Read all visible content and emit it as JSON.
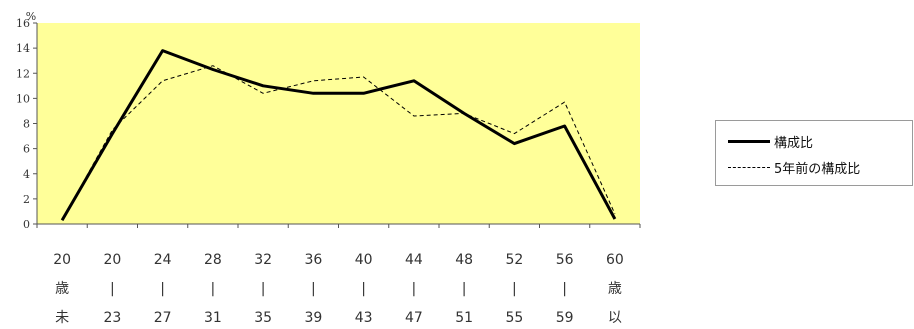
{
  "chart_data": {
    "type": "line",
    "y_unit": "%",
    "ylim": [
      0,
      16
    ],
    "yticks": [
      0,
      2,
      4,
      6,
      8,
      10,
      12,
      14,
      16
    ],
    "categories": [
      [
        "20",
        "歳",
        "未"
      ],
      [
        "20",
        "|",
        "23"
      ],
      [
        "24",
        "|",
        "27"
      ],
      [
        "28",
        "|",
        "31"
      ],
      [
        "32",
        "|",
        "35"
      ],
      [
        "36",
        "|",
        "39"
      ],
      [
        "40",
        "|",
        "43"
      ],
      [
        "44",
        "|",
        "47"
      ],
      [
        "48",
        "|",
        "51"
      ],
      [
        "52",
        "|",
        "55"
      ],
      [
        "56",
        "|",
        "59"
      ],
      [
        "60",
        "歳",
        "以"
      ]
    ],
    "series": [
      {
        "name": "構成比",
        "style": "solid",
        "color": "#000000",
        "values": [
          0.3,
          7.2,
          13.8,
          12.3,
          11.0,
          10.4,
          10.4,
          11.4,
          8.8,
          6.4,
          7.8,
          0.4
        ]
      },
      {
        "name": "5年前の構成比",
        "style": "dashed",
        "color": "#000000",
        "values": [
          0.3,
          7.5,
          11.4,
          12.6,
          10.4,
          11.4,
          11.7,
          8.6,
          8.8,
          7.2,
          9.7,
          0.8
        ]
      }
    ],
    "grid": false,
    "legend": "right",
    "plot_background": "#ffff99"
  }
}
